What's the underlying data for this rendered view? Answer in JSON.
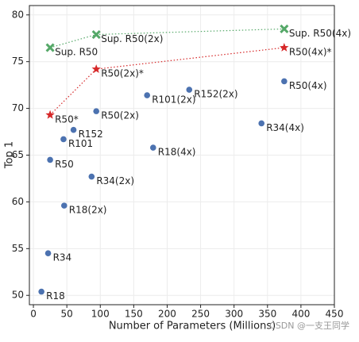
{
  "chart_data": {
    "type": "scatter",
    "xlabel": "Number of Parameters (Millions)",
    "ylabel": "Top 1",
    "xlim": [
      -6,
      450
    ],
    "ylim": [
      49,
      81
    ],
    "xticks": [
      0,
      50,
      100,
      150,
      200,
      250,
      300,
      350,
      400,
      450
    ],
    "yticks": [
      50,
      55,
      60,
      65,
      70,
      75,
      80
    ],
    "grid": true,
    "series": [
      {
        "color": "#4c72b0",
        "marker": "circle",
        "line": false,
        "x": [
          12,
          22,
          25,
          45,
          60,
          46,
          87,
          94,
          170,
          233,
          179,
          341,
          375
        ],
        "values": [
          50.4,
          54.5,
          64.5,
          66.7,
          67.7,
          59.6,
          62.7,
          69.7,
          71.4,
          72.0,
          65.8,
          68.4,
          72.9
        ],
        "labels": [
          "R18",
          "R34",
          "R50",
          "R101",
          "R152",
          "R18(2x)",
          "R34(2x)",
          "R50(2x)",
          "R101(2x)",
          "R152(2x)",
          "R18(4x)",
          "R34(4x)",
          "R50(4x)"
        ]
      },
      {
        "color": "#d62728",
        "marker": "star",
        "line": true,
        "x": [
          25,
          94,
          375
        ],
        "values": [
          69.3,
          74.2,
          76.5
        ],
        "labels": [
          "R50*",
          "R50(2x)*",
          "R50(4x)*"
        ]
      },
      {
        "color": "#55a868",
        "marker": "x",
        "line": true,
        "x": [
          25,
          94,
          375
        ],
        "values": [
          76.5,
          77.9,
          78.5
        ],
        "labels": [
          "Sup. R50",
          "Sup. R50(2x)",
          "Sup. R50(4x)"
        ]
      }
    ]
  },
  "watermark": "CSDN @一支王同学"
}
